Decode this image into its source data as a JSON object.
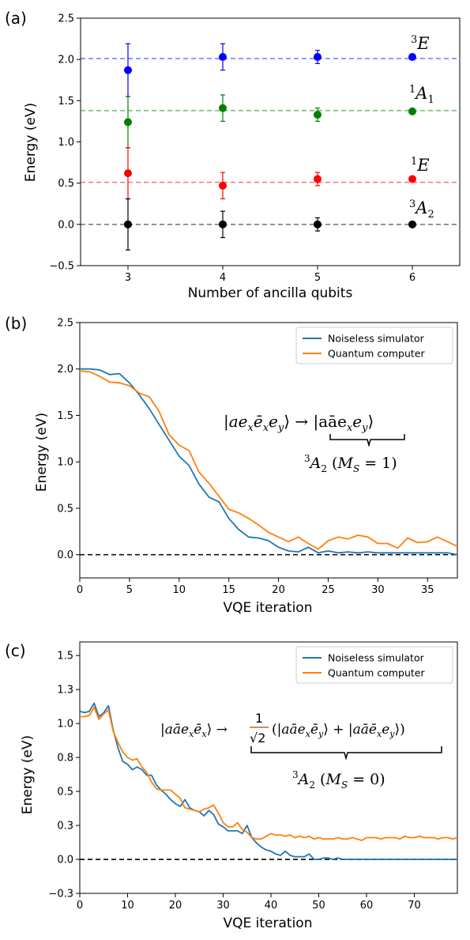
{
  "colors": {
    "blue": "#0000ff",
    "green": "#008000",
    "red": "#ff0000",
    "black": "#000000",
    "sim": "#1f77b4",
    "qc": "#ff7f0e",
    "annot": "#a0500a",
    "cE": "#1f6fc4",
    "cA1": "#22a04a",
    "cE1": "#e8202a"
  },
  "chart_data": [
    {
      "panel_label": "(a)",
      "type": "scatter",
      "xlabel": "Number of ancilla qubits",
      "ylabel": "Energy (eV)",
      "xlim": [
        2.5,
        6.5
      ],
      "ylim": [
        -0.5,
        2.5
      ],
      "xticks": [
        3,
        4,
        5,
        6
      ],
      "yticks": [
        -0.5,
        0.0,
        0.5,
        1.0,
        1.5,
        2.0,
        2.5
      ],
      "grid": false,
      "series": [
        {
          "label": "3E",
          "reference": 2.01,
          "color": "blue",
          "x": [
            3,
            4,
            5,
            6
          ],
          "y": [
            1.87,
            2.03,
            2.03,
            2.03
          ],
          "err": [
            0.32,
            0.16,
            0.08,
            0.02
          ]
        },
        {
          "label": "1A1",
          "reference": 1.38,
          "color": "green",
          "x": [
            3,
            4,
            5,
            6
          ],
          "y": [
            1.24,
            1.41,
            1.33,
            1.37
          ],
          "err": [
            0.31,
            0.16,
            0.08,
            0.02
          ]
        },
        {
          "label": "1E",
          "reference": 0.51,
          "color": "red",
          "x": [
            3,
            4,
            5,
            6
          ],
          "y": [
            0.62,
            0.47,
            0.55,
            0.55
          ],
          "err": [
            0.31,
            0.16,
            0.08,
            0.02
          ]
        },
        {
          "label": "3A2",
          "reference": 0.0,
          "color": "black",
          "x": [
            3,
            4,
            5,
            6
          ],
          "y": [
            0.0,
            0.0,
            0.0,
            0.0
          ],
          "err": [
            0.31,
            0.16,
            0.08,
            0.02
          ]
        }
      ]
    },
    {
      "panel_label": "(b)",
      "type": "line",
      "xlabel": "VQE iteration",
      "ylabel": "Energy (eV)",
      "xlim": [
        0,
        38
      ],
      "ylim": [
        -0.25,
        2.5
      ],
      "xticks": [
        0,
        5,
        10,
        15,
        20,
        25,
        30,
        35
      ],
      "yticks": [
        0.0,
        0.5,
        1.0,
        1.5,
        2.0,
        2.5
      ],
      "grid": false,
      "legend_position": "top-right",
      "reference_line": 0.0,
      "annotation": "|ae_x ē_x e_y⟩ → |aā e_x e_y⟩ ; 3A2 (MS = 1)",
      "series": [
        {
          "name": "Noiseless simulator",
          "color": "sim",
          "y": [
            2.0,
            2.0,
            1.99,
            1.94,
            1.95,
            1.85,
            1.72,
            1.57,
            1.4,
            1.23,
            1.06,
            0.96,
            0.76,
            0.62,
            0.57,
            0.39,
            0.27,
            0.19,
            0.18,
            0.15,
            0.08,
            0.04,
            0.03,
            0.08,
            0.02,
            0.04,
            0.02,
            0.03,
            0.02,
            0.03,
            0.02,
            0.02,
            0.02,
            0.02,
            0.02,
            0.02,
            0.02,
            0.02,
            0.0
          ]
        },
        {
          "name": "Quantum computer",
          "color": "qc",
          "y": [
            1.98,
            1.97,
            1.92,
            1.86,
            1.85,
            1.82,
            1.74,
            1.7,
            1.54,
            1.29,
            1.18,
            1.12,
            0.89,
            0.77,
            0.63,
            0.49,
            0.45,
            0.39,
            0.32,
            0.24,
            0.19,
            0.14,
            0.19,
            0.12,
            0.06,
            0.15,
            0.19,
            0.17,
            0.21,
            0.19,
            0.12,
            0.12,
            0.07,
            0.18,
            0.13,
            0.14,
            0.19,
            0.14,
            0.09
          ]
        }
      ]
    },
    {
      "panel_label": "(c)",
      "type": "line",
      "xlabel": "VQE iteration",
      "ylabel": "Energy (eV)",
      "xlim": [
        0,
        79
      ],
      "ylim": [
        -0.25,
        1.6
      ],
      "xticks": [
        0,
        10,
        20,
        30,
        40,
        50,
        60,
        70
      ],
      "yticks": [
        -0.25,
        0.0,
        0.25,
        0.5,
        0.75,
        1.0,
        1.25,
        1.5
      ],
      "grid": false,
      "legend_position": "top-right",
      "reference_line": 0.0,
      "annotation": "|aā e_x ē_x⟩ → (1/√2)(|aā e_x ē_y⟩ + |aā ē_x e_y⟩) ; 3A2 (MS = 0)",
      "series": [
        {
          "name": "Noiseless simulator",
          "color": "sim",
          "y": [
            1.09,
            1.08,
            1.09,
            1.15,
            1.05,
            1.08,
            1.13,
            0.95,
            0.82,
            0.72,
            0.7,
            0.66,
            0.68,
            0.66,
            0.62,
            0.62,
            0.55,
            0.51,
            0.48,
            0.44,
            0.41,
            0.39,
            0.44,
            0.38,
            0.36,
            0.35,
            0.32,
            0.36,
            0.33,
            0.26,
            0.24,
            0.21,
            0.21,
            0.21,
            0.19,
            0.25,
            0.16,
            0.12,
            0.09,
            0.07,
            0.06,
            0.04,
            0.03,
            0.06,
            0.03,
            0.02,
            0.02,
            0.02,
            0.04,
            0.0,
            0.0,
            0.01,
            0.01,
            0.0,
            0.01,
            0.0,
            0.0,
            0.0,
            0.0,
            0.0,
            0.0,
            0.0,
            0.0,
            0.0,
            0.0,
            0.0,
            0.0,
            0.0,
            0.0,
            0.0,
            0.0,
            0.0,
            0.0,
            0.0,
            0.0,
            0.0,
            0.0,
            0.0,
            0.0,
            0.0
          ]
        },
        {
          "name": "Quantum computer",
          "color": "qc",
          "y": [
            1.05,
            1.05,
            1.06,
            1.12,
            1.03,
            1.07,
            1.1,
            0.94,
            0.86,
            0.79,
            0.75,
            0.73,
            0.74,
            0.68,
            0.64,
            0.57,
            0.52,
            0.51,
            0.51,
            0.51,
            0.48,
            0.45,
            0.38,
            0.37,
            0.36,
            0.35,
            0.37,
            0.38,
            0.4,
            0.34,
            0.27,
            0.24,
            0.24,
            0.27,
            0.22,
            0.2,
            0.16,
            0.15,
            0.15,
            0.17,
            0.19,
            0.18,
            0.18,
            0.17,
            0.18,
            0.16,
            0.17,
            0.16,
            0.17,
            0.15,
            0.16,
            0.15,
            0.15,
            0.15,
            0.16,
            0.15,
            0.15,
            0.16,
            0.15,
            0.14,
            0.16,
            0.16,
            0.16,
            0.15,
            0.16,
            0.16,
            0.16,
            0.15,
            0.17,
            0.16,
            0.16,
            0.17,
            0.16,
            0.16,
            0.16,
            0.15,
            0.16,
            0.16,
            0.15,
            0.16
          ]
        }
      ]
    }
  ]
}
